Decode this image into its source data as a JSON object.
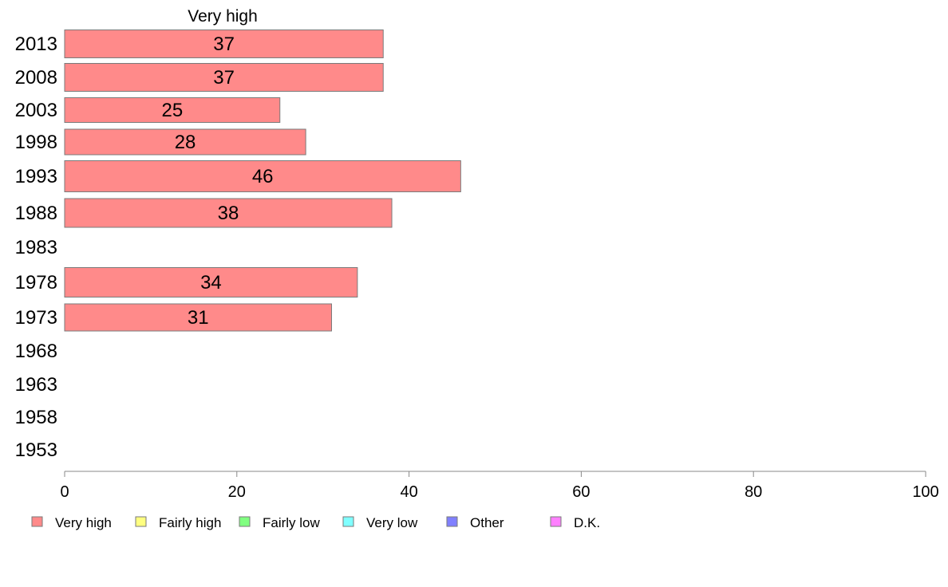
{
  "chart_data": {
    "type": "bar",
    "orientation": "horizontal",
    "stacked": true,
    "title": "",
    "column_title": "Very high",
    "xlabel": "",
    "ylabel": "",
    "xlim": [
      0,
      100
    ],
    "x_ticks": [
      0,
      20,
      40,
      60,
      80,
      100
    ],
    "categories": [
      "2013",
      "2008",
      "2003",
      "1998",
      "1993",
      "1988",
      "1983",
      "1978",
      "1973",
      "1968",
      "1963",
      "1958",
      "1953"
    ],
    "series": [
      {
        "name": "Very high",
        "color": "#ff8a8a",
        "values": [
          37,
          37,
          25,
          28,
          46,
          38,
          null,
          34,
          31,
          null,
          null,
          null,
          null
        ]
      }
    ],
    "data_labels": [
      "37",
      "37",
      "25",
      "28",
      "46",
      "38",
      "",
      "34",
      "31",
      "",
      "",
      "",
      ""
    ],
    "legend": {
      "placement": "bottom",
      "items": [
        {
          "label": "Very high",
          "color": "#ff8a8a"
        },
        {
          "label": "Fairly high",
          "color": "#ffff80"
        },
        {
          "label": "Fairly low",
          "color": "#80ff80"
        },
        {
          "label": "Very low",
          "color": "#80ffff"
        },
        {
          "label": "Other",
          "color": "#8080ff"
        },
        {
          "label": "D.K.",
          "color": "#ff80ff"
        }
      ]
    },
    "grid": false
  }
}
